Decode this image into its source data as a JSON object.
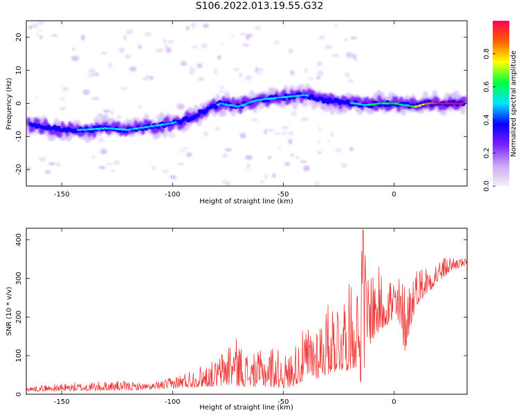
{
  "title": "S106.2022.013.19.55.G32",
  "chart_data": [
    {
      "type": "heatmap",
      "xlabel": "Height of straight line (km)",
      "ylabel": "Frequency (Hz)",
      "xlim": [
        -166,
        33
      ],
      "ylim": [
        -25,
        25
      ],
      "xticks": [
        -150,
        -100,
        -50,
        0
      ],
      "yticks": [
        -20,
        -10,
        0,
        10,
        20
      ],
      "colorbar": {
        "label": "Normalized spectral amplitude",
        "range": [
          0,
          1
        ],
        "ticks": [
          "0.0",
          "0.2",
          "0.4",
          "0.6",
          "0.8"
        ],
        "tick_values": [
          0,
          0.2,
          0.4,
          0.6,
          0.8
        ],
        "colors": [
          "#f5eef8",
          "#c9a8f5",
          "#7a1fff",
          "#0a00ff",
          "#00e5ff",
          "#00ff40",
          "#ffff00",
          "#ff6000",
          "#ff0055"
        ]
      },
      "ridge": {
        "x": [
          -163,
          -150,
          -140,
          -130,
          -120,
          -110,
          -100,
          -92,
          -85,
          -78,
          -70,
          -62,
          -55,
          -48,
          -40,
          -32,
          -25,
          -18,
          -12,
          -6,
          0,
          5,
          10,
          15,
          20,
          25,
          31
        ],
        "y": [
          -6.5,
          -8,
          -8,
          -7.5,
          -8,
          -7,
          -6,
          -4.5,
          -2,
          0,
          -1,
          1,
          1.5,
          2,
          2.5,
          1,
          0.5,
          0,
          -0.5,
          0,
          0,
          -0.5,
          -1,
          0,
          0,
          0,
          0
        ],
        "amplitude": [
          0.35,
          0.4,
          0.45,
          0.45,
          0.45,
          0.45,
          0.45,
          0.4,
          0.4,
          0.45,
          0.45,
          0.45,
          0.45,
          0.45,
          0.45,
          0.4,
          0.4,
          0.45,
          0.55,
          0.6,
          0.6,
          0.55,
          0.7,
          0.85,
          0.95,
          1.0,
          0.95
        ]
      }
    },
    {
      "type": "line",
      "xlabel": "Height of straight line (km)",
      "ylabel": "SNR (10 * v/v)",
      "xlim": [
        -166,
        33
      ],
      "ylim": [
        0,
        430
      ],
      "xticks": [
        -150,
        -100,
        -50,
        0
      ],
      "yticks": [
        0,
        100,
        200,
        300,
        400
      ],
      "color": "#ee3333",
      "envelope": {
        "x": [
          -166,
          -150,
          -125,
          -110,
          -100,
          -90,
          -80,
          -73,
          -65,
          -55,
          -48,
          -42,
          -35,
          -28,
          -22,
          -17,
          -14,
          -12,
          -8,
          -3,
          2,
          5,
          10,
          20,
          26,
          33
        ],
        "low": [
          8,
          8,
          10,
          12,
          15,
          18,
          20,
          22,
          20,
          18,
          15,
          30,
          40,
          55,
          60,
          70,
          10,
          120,
          150,
          180,
          170,
          110,
          230,
          290,
          320,
          335
        ],
        "high": [
          20,
          28,
          35,
          28,
          45,
          70,
          90,
          160,
          100,
          130,
          100,
          160,
          200,
          250,
          280,
          300,
          420,
          350,
          330,
          330,
          310,
          300,
          330,
          350,
          360,
          350
        ]
      }
    }
  ]
}
